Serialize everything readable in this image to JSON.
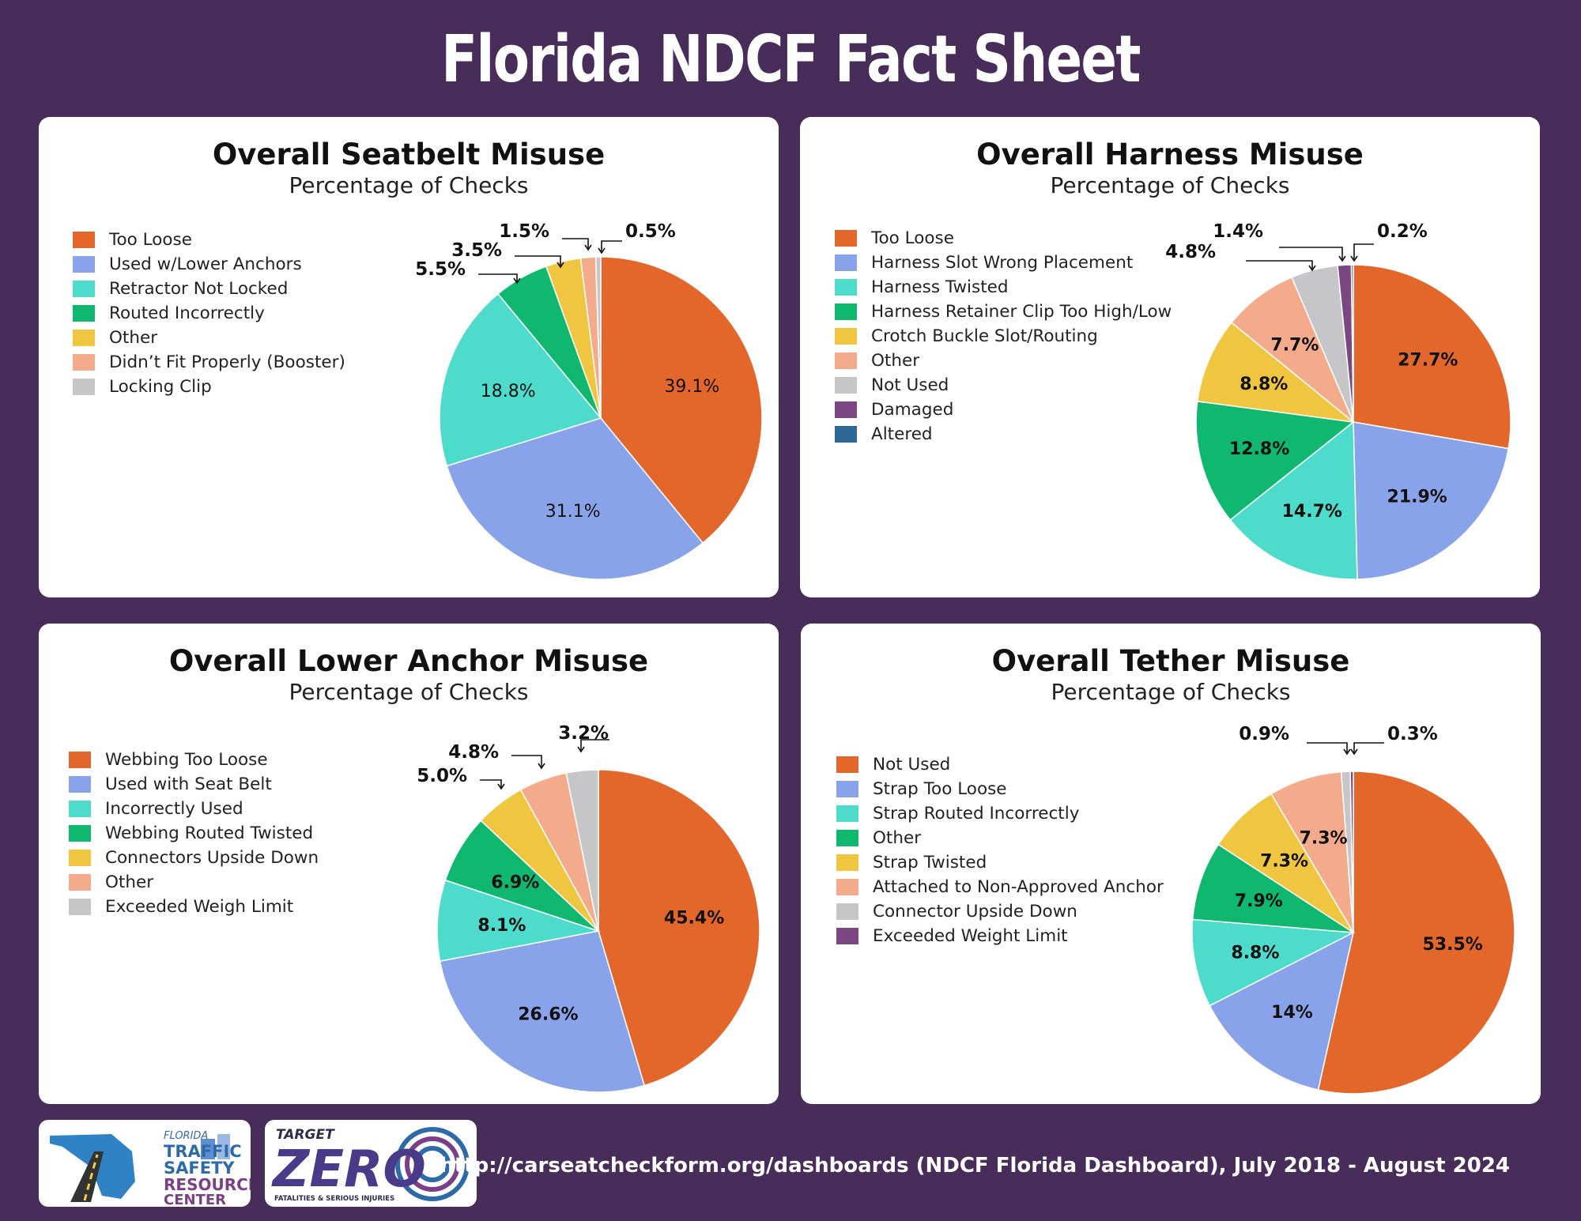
{
  "header": {
    "title": "Florida NDCF Fact Sheet"
  },
  "footer": {
    "source": "http://carseatcheckform.org/dashboards (NDCF Florida Dashboard), July 2018 - August 2024",
    "logo1": {
      "line1": "FLORIDA",
      "line2": "TRAFFIC",
      "line3": "SAFETY",
      "line4": "RESOURCE",
      "line5": "CENTER"
    },
    "logo2": {
      "line1": "TARGET",
      "line2": "ZERO",
      "line3": "FATALITIES & SERIOUS INJURIES"
    }
  },
  "chart_data": [
    {
      "type": "pie",
      "title": "Overall Seatbelt Misuse",
      "subtitle": "Percentage of Checks",
      "series": [
        {
          "name": "Too Loose",
          "value": 39.1,
          "label": "39.1%",
          "color": "#e3672a"
        },
        {
          "name": "Used w/Lower Anchors",
          "value": 31.1,
          "label": "31.1%",
          "color": "#89a3ea"
        },
        {
          "name": "Retractor Not Locked",
          "value": 18.8,
          "label": "18.8%",
          "color": "#4ddbcc"
        },
        {
          "name": "Routed Incorrectly",
          "value": 5.5,
          "label": "5.5%",
          "color": "#0fb86e"
        },
        {
          "name": "Other",
          "value": 3.5,
          "label": "3.5%",
          "color": "#f0c53f"
        },
        {
          "name": "Didn’t Fit Properly (Booster)",
          "value": 1.5,
          "label": "1.5%",
          "color": "#f3ab8b"
        },
        {
          "name": "Locking Clip",
          "value": 0.5,
          "label": "0.5%",
          "color": "#c6c6c9"
        }
      ]
    },
    {
      "type": "pie",
      "title": "Overall Harness Misuse",
      "subtitle": "Percentage of Checks",
      "series": [
        {
          "name": "Too Loose",
          "value": 27.7,
          "label": "27.7%",
          "color": "#e3672a"
        },
        {
          "name": "Harness Slot Wrong Placement",
          "value": 21.9,
          "label": "21.9%",
          "color": "#89a3ea"
        },
        {
          "name": "Harness Twisted",
          "value": 14.7,
          "label": "14.7%",
          "color": "#4ddbcc"
        },
        {
          "name": "Harness Retainer Clip Too High/Low",
          "value": 12.8,
          "label": "12.8%",
          "color": "#0fb86e"
        },
        {
          "name": "Crotch Buckle Slot/Routing",
          "value": 8.8,
          "label": "8.8%",
          "color": "#f0c53f"
        },
        {
          "name": "Other",
          "value": 7.7,
          "label": "7.7%",
          "color": "#f3ab8b"
        },
        {
          "name": "Not Used",
          "value": 4.8,
          "label": "4.8%",
          "color": "#c6c6c9"
        },
        {
          "name": "Damaged",
          "value": 1.4,
          "label": "1.4%",
          "color": "#7b4783"
        },
        {
          "name": "Altered",
          "value": 0.2,
          "label": "0.2%",
          "color": "#2d6896"
        }
      ]
    },
    {
      "type": "pie",
      "title": "Overall Lower Anchor Misuse",
      "subtitle": "Percentage of Checks",
      "series": [
        {
          "name": "Webbing Too Loose",
          "value": 45.4,
          "label": "45.4%",
          "color": "#e3672a"
        },
        {
          "name": "Used with Seat Belt",
          "value": 26.6,
          "label": "26.6%",
          "color": "#89a3ea"
        },
        {
          "name": "Incorrectly Used",
          "value": 8.1,
          "label": "8.1%",
          "color": "#4ddbcc"
        },
        {
          "name": "Webbing Routed Twisted",
          "value": 6.9,
          "label": "6.9%",
          "color": "#0fb86e"
        },
        {
          "name": "Connectors Upside Down",
          "value": 5.0,
          "label": "5.0%",
          "color": "#f0c53f"
        },
        {
          "name": "Other",
          "value": 4.8,
          "label": "4.8%",
          "color": "#f3ab8b"
        },
        {
          "name": "Exceeded Weigh Limit",
          "value": 3.2,
          "label": "3.2%",
          "color": "#c6c6c9"
        }
      ]
    },
    {
      "type": "pie",
      "title": "Overall Tether Misuse",
      "subtitle": "Percentage of Checks",
      "series": [
        {
          "name": "Not Used",
          "value": 53.5,
          "label": "53.5%",
          "color": "#e3672a"
        },
        {
          "name": "Strap Too Loose",
          "value": 14,
          "label": "14%",
          "color": "#89a3ea"
        },
        {
          "name": "Strap Routed Incorrectly",
          "value": 8.8,
          "label": "8.8%",
          "color": "#4ddbcc"
        },
        {
          "name": "Other",
          "value": 7.9,
          "label": "7.9%",
          "color": "#0fb86e"
        },
        {
          "name": "Strap Twisted",
          "value": 7.3,
          "label": "7.3%",
          "color": "#f0c53f"
        },
        {
          "name": "Attached to Non-Approved Anchor",
          "value": 7.3,
          "label": "7.3%",
          "color": "#f3ab8b"
        },
        {
          "name": "Connector Upside Down",
          "value": 0.9,
          "label": "0.9%",
          "color": "#c6c6c9"
        },
        {
          "name": "Exceeded Weight Limit",
          "value": 0.3,
          "label": "0.3%",
          "color": "#7b4783"
        }
      ]
    }
  ]
}
